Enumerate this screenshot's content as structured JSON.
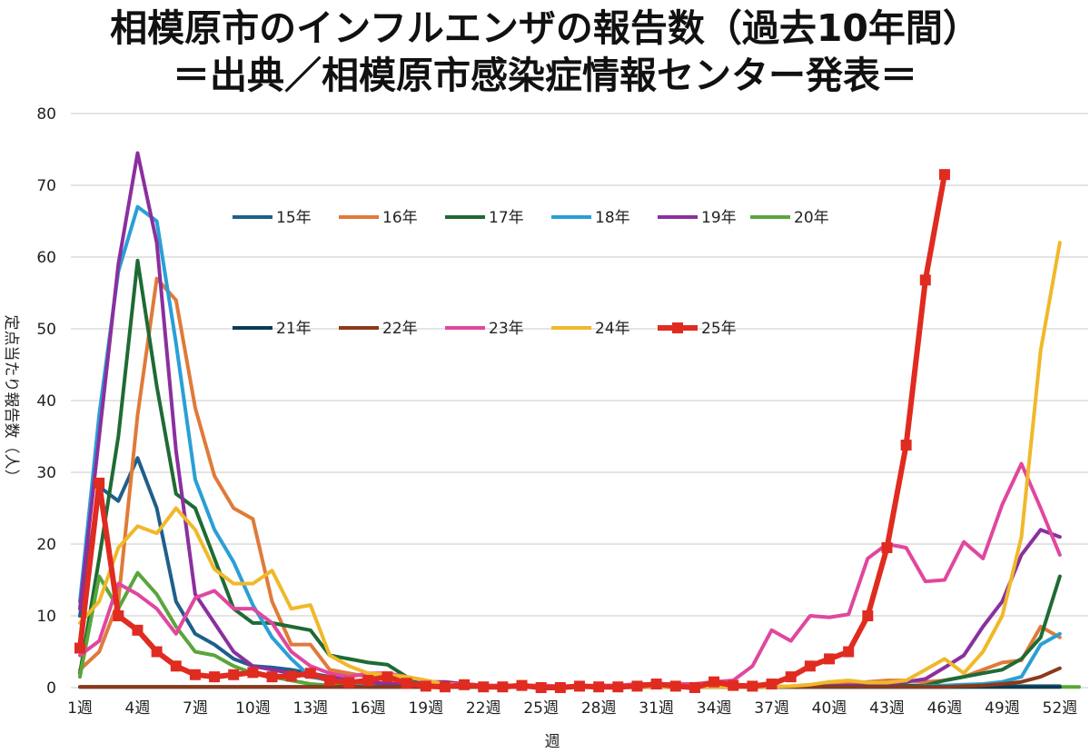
{
  "chart_data": {
    "type": "line",
    "title": "相模原市のインフルエンザの報告数（過去10年間）",
    "subtitle": "＝出典／相模原市感染症情報センター発表＝",
    "xlabel": "週",
    "ylabel": "定点当たり報告数（人）",
    "ylim": [
      0,
      80
    ],
    "yticks": [
      "0",
      "10",
      "20",
      "30",
      "40",
      "50",
      "60",
      "70",
      "80"
    ],
    "x": [
      1,
      2,
      3,
      4,
      5,
      6,
      7,
      8,
      9,
      10,
      11,
      12,
      13,
      14,
      15,
      16,
      17,
      18,
      19,
      20,
      21,
      22,
      23,
      24,
      25,
      26,
      27,
      28,
      29,
      30,
      31,
      32,
      33,
      34,
      35,
      36,
      37,
      38,
      39,
      40,
      41,
      42,
      43,
      44,
      45,
      46,
      47,
      48,
      49,
      50,
      51,
      52,
      53
    ],
    "xtick_labels": [
      "1週",
      "4週",
      "7週",
      "10週",
      "13週",
      "16週",
      "19週",
      "22週",
      "25週",
      "28週",
      "31週",
      "34週",
      "37週",
      "40週",
      "43週",
      "46週",
      "49週",
      "52週"
    ],
    "xtick_weeks": [
      1,
      4,
      7,
      10,
      13,
      16,
      19,
      22,
      25,
      28,
      31,
      34,
      37,
      40,
      43,
      46,
      49,
      52
    ],
    "legend_rows": [
      [
        "15年",
        "16年",
        "17年",
        "18年",
        "19年",
        "20年"
      ],
      [
        "21年",
        "22年",
        "23年",
        "24年",
        "25年"
      ]
    ],
    "series": [
      {
        "name": "15年",
        "color": "#1f5f8b",
        "width": 4,
        "values": [
          10,
          28,
          26,
          32,
          25,
          12,
          7.5,
          6,
          4,
          3,
          2.8,
          2.5,
          2,
          1.5,
          1,
          0.8,
          0.5,
          0.3,
          0.2,
          0.2,
          0.1,
          0.1,
          0.1,
          0.1,
          0.1,
          0.1,
          0.1,
          0.1,
          0.1,
          0.1,
          0.1,
          0.1,
          0.1,
          0.1,
          0.1,
          0.1,
          0.1,
          0.1,
          0.1,
          0.1,
          0.1,
          0.1,
          0.1,
          0.1,
          0.1,
          0.1,
          0.1,
          0.2,
          0.2,
          0.2,
          0.2,
          0.2,
          null
        ]
      },
      {
        "name": "16年",
        "color": "#e07a3a",
        "width": 4,
        "values": [
          2.5,
          5,
          12,
          38,
          57,
          54,
          39,
          29.5,
          25,
          23.5,
          12,
          6,
          6,
          2.5,
          2,
          1.5,
          1.2,
          1,
          0.5,
          0.3,
          0.2,
          0.1,
          0.1,
          0.1,
          0.1,
          0.1,
          0.1,
          0.1,
          0.1,
          0.1,
          0.1,
          0.1,
          0.1,
          0.1,
          0.1,
          0.1,
          0.1,
          0.1,
          0.2,
          0.3,
          0.5,
          0.8,
          1,
          1,
          0.8,
          1,
          1.5,
          2.5,
          3.5,
          3.8,
          8.5,
          7,
          null
        ]
      },
      {
        "name": "17年",
        "color": "#1e6b34",
        "width": 4,
        "values": [
          2,
          18,
          35,
          59.5,
          42,
          27,
          25,
          18,
          11,
          9,
          9,
          8.5,
          8,
          4.5,
          4,
          3.5,
          3.2,
          1.5,
          0.5,
          0.3,
          0.2,
          0.1,
          0.1,
          0.1,
          0.1,
          0.1,
          0.1,
          0.1,
          0.1,
          0.1,
          0.1,
          0.1,
          0.1,
          0.1,
          0.1,
          0.1,
          0.1,
          0.1,
          0.1,
          0.2,
          0.2,
          0.2,
          0.2,
          0.3,
          0.3,
          1,
          1.5,
          2,
          2.5,
          4,
          7,
          15.5,
          null
        ]
      },
      {
        "name": "18年",
        "color": "#2a9fd6",
        "width": 4,
        "values": [
          12,
          38,
          58,
          67,
          65,
          48,
          29,
          22,
          17.5,
          11.5,
          7,
          4,
          1.5,
          1,
          0.8,
          0.5,
          0.3,
          0.2,
          0.1,
          0.1,
          0.1,
          0.1,
          0.1,
          0.1,
          0.1,
          0.1,
          0.1,
          0.1,
          0.1,
          0.1,
          0.1,
          0.1,
          0.1,
          0.1,
          0.1,
          0.1,
          0.1,
          0.1,
          0.1,
          0.1,
          0.1,
          0.1,
          0.1,
          0.1,
          0.2,
          0.3,
          0.4,
          0.5,
          0.8,
          1.5,
          6,
          7.5,
          null
        ]
      },
      {
        "name": "19年",
        "color": "#8b2f9e",
        "width": 4,
        "values": [
          11,
          35,
          59,
          74.5,
          62,
          33,
          13,
          9,
          5,
          3,
          2.5,
          2,
          1.5,
          1.5,
          1,
          0.8,
          0.5,
          0.5,
          0.8,
          0.8,
          0.5,
          0.3,
          0.2,
          0.2,
          0.1,
          0.1,
          0.1,
          0.1,
          0.1,
          0.1,
          0.1,
          0.1,
          0.1,
          0.2,
          0.3,
          0.2,
          0.2,
          0.1,
          0.1,
          0.2,
          0.3,
          0.3,
          0.5,
          0.8,
          1.2,
          2.8,
          4.5,
          8.5,
          12,
          18.5,
          22,
          21,
          null
        ]
      },
      {
        "name": "20年",
        "color": "#5aa63c",
        "width": 4,
        "values": [
          1.5,
          15.5,
          11,
          16,
          13,
          8.5,
          5,
          4.5,
          3,
          2,
          1.5,
          1,
          0.5,
          0.3,
          0.2,
          0.1,
          0.1,
          0.1,
          0.1,
          0.1,
          0.1,
          0.1,
          0.1,
          0.1,
          0.1,
          0.1,
          0.1,
          0.1,
          0.1,
          0.1,
          0.1,
          0.1,
          0.1,
          0.1,
          0.1,
          0.1,
          0.1,
          0.1,
          0.1,
          0.1,
          0.1,
          0.1,
          0.1,
          0.1,
          0.1,
          0.1,
          0.1,
          0.1,
          0.1,
          0.1,
          0.1,
          0.1,
          0.1
        ]
      },
      {
        "name": "21年",
        "color": "#0d3b52",
        "width": 4,
        "values": [
          0.1,
          0.1,
          0.1,
          0.1,
          0.1,
          0.1,
          0.1,
          0.1,
          0.1,
          0.1,
          0.1,
          0.1,
          0.1,
          0.1,
          0.1,
          0.1,
          0.1,
          0.1,
          0.1,
          0.1,
          0.1,
          0.1,
          0.1,
          0.1,
          0.1,
          0.1,
          0.1,
          0.1,
          0.1,
          0.1,
          0.1,
          0.1,
          0.1,
          0.1,
          0.1,
          0.1,
          0.1,
          0.1,
          0.1,
          0.1,
          0.1,
          0.1,
          0.1,
          0.1,
          0.1,
          0.1,
          0.1,
          0.1,
          0.1,
          0.1,
          0.1,
          0.1,
          null
        ]
      },
      {
        "name": "22年",
        "color": "#8a3a1a",
        "width": 4,
        "values": [
          0.1,
          0.1,
          0.1,
          0.1,
          0.1,
          0.1,
          0.1,
          0.1,
          0.1,
          0.1,
          0.1,
          0.1,
          0.1,
          0.1,
          0.1,
          0.1,
          0.1,
          0.1,
          0.1,
          0.1,
          0.1,
          0.1,
          0.1,
          0.1,
          0.1,
          0.1,
          0.1,
          0.1,
          0.1,
          0.1,
          0.1,
          0.1,
          0.1,
          0.1,
          0.1,
          0.1,
          0.1,
          0.1,
          0.1,
          0.1,
          0.1,
          0.1,
          0.1,
          0.1,
          0.1,
          0.1,
          0.2,
          0.3,
          0.5,
          0.8,
          1.5,
          2.7,
          null
        ]
      },
      {
        "name": "23年",
        "color": "#e0479e",
        "width": 4,
        "values": [
          4.5,
          6.5,
          14.5,
          13,
          11,
          7.5,
          12.5,
          13.5,
          11,
          11,
          9,
          5,
          3,
          2,
          1.5,
          2,
          2,
          1.5,
          1,
          0.5,
          0.5,
          0.3,
          0.3,
          0.3,
          0.3,
          0.2,
          0.2,
          0.3,
          0.3,
          0.5,
          0.5,
          0.5,
          0.5,
          0.8,
          1,
          3,
          8,
          6.5,
          10,
          9.8,
          10.2,
          18,
          20,
          19.5,
          14.8,
          15,
          20.3,
          18,
          25.5,
          31.2,
          25,
          18.5,
          null
        ]
      },
      {
        "name": "24年",
        "color": "#f0b82a",
        "width": 4,
        "values": [
          9,
          12,
          19.5,
          22.5,
          21.5,
          25,
          22,
          16.5,
          14.5,
          14.5,
          16.3,
          11,
          11.5,
          4.5,
          3,
          2,
          1.8,
          1.5,
          1,
          0.5,
          0.3,
          0.2,
          0.2,
          0.1,
          0.1,
          0.1,
          0.1,
          0.1,
          0.1,
          0.1,
          0.1,
          0.1,
          0.1,
          0.1,
          0.1,
          0.1,
          0.1,
          0.2,
          0.4,
          0.8,
          1,
          0.7,
          0.7,
          1,
          2.5,
          4,
          2,
          5,
          10,
          21,
          47,
          62,
          null
        ]
      },
      {
        "name": "25年",
        "color": "#e02b20",
        "width": 6,
        "marker": true,
        "values": [
          5.5,
          28.5,
          10,
          8,
          5,
          3,
          1.8,
          1.5,
          1.8,
          2.1,
          1.5,
          1.6,
          2,
          1,
          0.7,
          1,
          1.5,
          0.6,
          0.2,
          0.1,
          0.4,
          0.1,
          0.1,
          0.3,
          0,
          0,
          0.2,
          0.1,
          0.1,
          0.2,
          0.5,
          0.2,
          0,
          0.8,
          0.3,
          0.2,
          0.5,
          1.5,
          3,
          4,
          5,
          10,
          19.5,
          33.8,
          56.8,
          71.5,
          null,
          null,
          null,
          null,
          null,
          null,
          null
        ]
      }
    ]
  }
}
